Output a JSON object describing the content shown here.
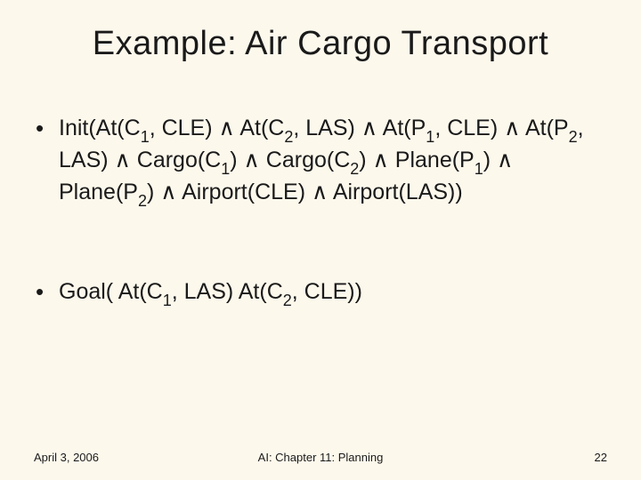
{
  "title": "Example: Air Cargo Transport",
  "bullets": [
    {
      "segments": [
        {
          "t": "Init(At(C"
        },
        {
          "t": "1",
          "sub": true
        },
        {
          "t": ", CLE) ∧ At(C"
        },
        {
          "t": "2",
          "sub": true
        },
        {
          "t": ", LAS) ∧ At(P"
        },
        {
          "t": "1",
          "sub": true
        },
        {
          "t": ", CLE) ∧ At(P"
        },
        {
          "t": "2",
          "sub": true
        },
        {
          "t": ", LAS) ∧ Cargo(C"
        },
        {
          "t": "1",
          "sub": true
        },
        {
          "t": ") ∧ Cargo(C"
        },
        {
          "t": "2",
          "sub": true
        },
        {
          "t": ") ∧ Plane(P"
        },
        {
          "t": "1",
          "sub": true
        },
        {
          "t": ") ∧ Plane(P"
        },
        {
          "t": "2",
          "sub": true
        },
        {
          "t": ") ∧ Airport(CLE) ∧ Airport(LAS))"
        }
      ]
    },
    {
      "segments": [
        {
          "t": "Goal( At(C"
        },
        {
          "t": "1",
          "sub": true
        },
        {
          "t": ", LAS) At(C"
        },
        {
          "t": "2",
          "sub": true
        },
        {
          "t": ", CLE))"
        }
      ]
    }
  ],
  "footer": {
    "date": "April 3, 2006",
    "center": "AI: Chapter 11: Planning",
    "page": "22"
  },
  "colors": {
    "background": "#fdf8ec",
    "text": "#1a1a1a"
  },
  "typography": {
    "title_fontsize": 38,
    "body_fontsize": 25,
    "footer_fontsize": 13,
    "font_family": "Verdana"
  }
}
